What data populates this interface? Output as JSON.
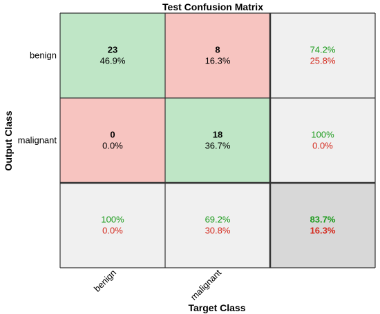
{
  "chart_data": {
    "type": "table",
    "title": "Test Confusion Matrix",
    "xlabel": "Target Class",
    "ylabel": "Output Class",
    "x_categories": [
      "benign",
      "malignant"
    ],
    "y_categories": [
      "benign",
      "malignant"
    ],
    "cells": [
      [
        {
          "count": "23",
          "percent": "46.9%"
        },
        {
          "count": "8",
          "percent": "16.3%"
        }
      ],
      [
        {
          "count": "0",
          "percent": "0.0%"
        },
        {
          "count": "18",
          "percent": "36.7%"
        }
      ]
    ],
    "row_summary": [
      {
        "correct": "74.2%",
        "incorrect": "25.8%"
      },
      {
        "correct": "100%",
        "incorrect": "0.0%"
      }
    ],
    "col_summary": [
      {
        "correct": "100%",
        "incorrect": "0.0%"
      },
      {
        "correct": "69.2%",
        "incorrect": "30.8%"
      }
    ],
    "overall": {
      "correct": "83.7%",
      "incorrect": "16.3%"
    },
    "colors": {
      "correct_fill": "#bfe6c6",
      "incorrect_fill": "#f7c4c0",
      "summary_fill": "#f0f0f0",
      "overall_fill": "#d8d8d8",
      "green_text": "#1a9a1a",
      "red_text": "#d42a1e",
      "line": "#333333"
    }
  }
}
